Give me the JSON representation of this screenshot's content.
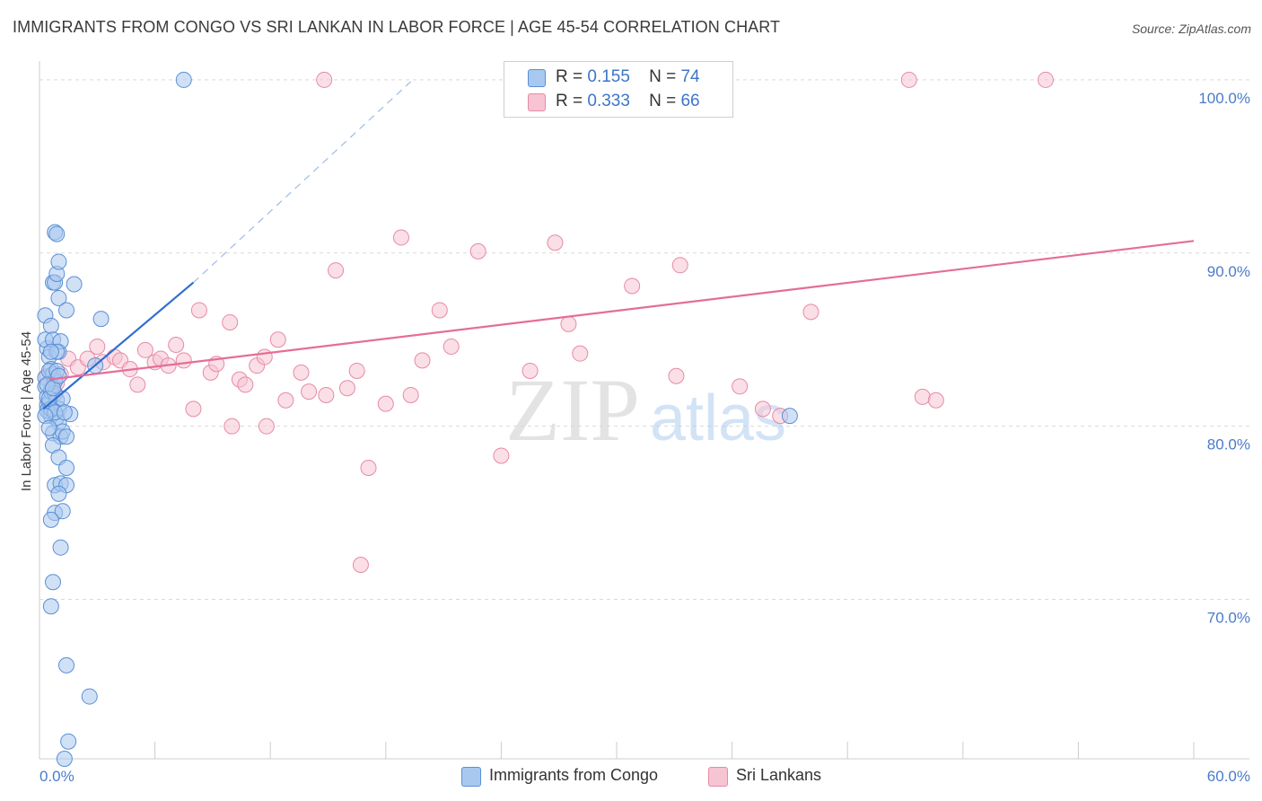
{
  "title": "IMMIGRANTS FROM CONGO VS SRI LANKAN IN LABOR FORCE | AGE 45-54 CORRELATION CHART",
  "source": "Source: ZipAtlas.com",
  "watermark": {
    "zip": "ZIP",
    "atlas": "atlas"
  },
  "colors": {
    "blue_fill": "#a9c8ef",
    "blue_stroke": "#5b8fd6",
    "blue_line": "#2f6fd0",
    "pink_fill": "#f6c4d3",
    "pink_stroke": "#e78aa7",
    "pink_line": "#e56d97",
    "grid": "#d9d9d9",
    "tick_text": "#4a7cc9"
  },
  "legend": {
    "rows": [
      {
        "r_label": "R =",
        "r_value": "0.155",
        "n_label": "N =",
        "n_value": "74"
      },
      {
        "r_label": "R =",
        "r_value": "0.333",
        "n_label": "N =",
        "n_value": "66"
      }
    ]
  },
  "bottom_legend": [
    "Immigrants from Congo",
    "Sri Lankans"
  ],
  "chart_data": {
    "type": "scatter",
    "title": "IMMIGRANTS FROM CONGO VS SRI LANKAN IN LABOR FORCE | AGE 45-54 CORRELATION CHART",
    "xlabel": "",
    "ylabel": "In Labor Force | Age 45-54",
    "xlim": [
      0,
      60
    ],
    "ylim": [
      60.8,
      101.5
    ],
    "x_tick_labels": [
      "0.0%",
      "60.0%"
    ],
    "y_ticks": [
      70,
      80,
      90,
      100
    ],
    "y_tick_labels": [
      "70.0%",
      "80.0%",
      "90.0%",
      "100.0%"
    ],
    "grid": true,
    "series": [
      {
        "name": "Immigrants from Congo",
        "r": 0.155,
        "n": 74,
        "trend": {
          "x": [
            0.2,
            8.0
          ],
          "y": [
            81.0,
            88.3
          ],
          "dashed_to": [
            19.3,
            99.9
          ]
        },
        "points": [
          [
            0.3,
            82.8
          ],
          [
            0.3,
            82.3
          ],
          [
            0.4,
            81.7
          ],
          [
            0.4,
            81.2
          ],
          [
            0.5,
            80.9
          ],
          [
            0.5,
            81.4
          ],
          [
            0.6,
            82.0
          ],
          [
            0.6,
            80.6
          ],
          [
            0.4,
            84.5
          ],
          [
            0.5,
            84.0
          ],
          [
            0.6,
            83.3
          ],
          [
            0.7,
            83.0
          ],
          [
            0.8,
            82.6
          ],
          [
            0.8,
            81.9
          ],
          [
            0.9,
            81.5
          ],
          [
            1.0,
            81.0
          ],
          [
            0.9,
            80.5
          ],
          [
            1.0,
            80.2
          ],
          [
            0.7,
            79.6
          ],
          [
            0.3,
            85.0
          ],
          [
            0.3,
            86.4
          ],
          [
            0.6,
            85.8
          ],
          [
            0.7,
            85.0
          ],
          [
            1.0,
            84.3
          ],
          [
            1.1,
            84.9
          ],
          [
            0.7,
            88.3
          ],
          [
            0.8,
            88.3
          ],
          [
            0.9,
            88.8
          ],
          [
            1.0,
            87.4
          ],
          [
            1.4,
            86.7
          ],
          [
            1.8,
            88.2
          ],
          [
            0.8,
            91.2
          ],
          [
            0.9,
            91.1
          ],
          [
            1.0,
            89.5
          ],
          [
            1.1,
            79.4
          ],
          [
            1.2,
            79.7
          ],
          [
            1.4,
            79.4
          ],
          [
            0.7,
            78.9
          ],
          [
            1.0,
            78.2
          ],
          [
            1.4,
            77.6
          ],
          [
            0.8,
            76.6
          ],
          [
            1.1,
            76.7
          ],
          [
            1.4,
            76.6
          ],
          [
            1.0,
            76.1
          ],
          [
            0.8,
            75.0
          ],
          [
            1.2,
            75.1
          ],
          [
            0.6,
            74.6
          ],
          [
            1.1,
            73.0
          ],
          [
            0.7,
            71.0
          ],
          [
            0.6,
            69.6
          ],
          [
            1.4,
            66.2
          ],
          [
            2.6,
            64.4
          ],
          [
            1.5,
            61.8
          ],
          [
            1.3,
            60.8
          ],
          [
            3.2,
            86.2
          ],
          [
            2.9,
            83.5
          ],
          [
            1.6,
            80.7
          ],
          [
            7.5,
            100.0
          ],
          [
            39.0,
            80.6
          ],
          [
            0.5,
            83.2
          ],
          [
            0.4,
            80.9
          ],
          [
            0.6,
            81.0
          ],
          [
            0.9,
            84.3
          ],
          [
            1.2,
            81.6
          ],
          [
            0.4,
            82.4
          ],
          [
            0.8,
            80.8
          ],
          [
            1.3,
            80.8
          ],
          [
            0.5,
            81.6
          ],
          [
            0.7,
            82.2
          ],
          [
            0.9,
            83.2
          ],
          [
            0.6,
            84.3
          ],
          [
            1.0,
            82.9
          ],
          [
            0.3,
            80.6
          ],
          [
            0.5,
            79.9
          ]
        ]
      },
      {
        "name": "Sri Lankans",
        "r": 0.333,
        "n": 66,
        "trend": {
          "x": [
            0.5,
            60.0
          ],
          "y": [
            82.7,
            90.7
          ]
        },
        "points": [
          [
            0.4,
            82.9
          ],
          [
            0.6,
            82.3
          ],
          [
            0.8,
            81.9
          ],
          [
            0.9,
            82.5
          ],
          [
            1.1,
            83.0
          ],
          [
            1.5,
            83.9
          ],
          [
            2.0,
            83.4
          ],
          [
            2.5,
            83.9
          ],
          [
            3.0,
            84.6
          ],
          [
            3.3,
            83.7
          ],
          [
            3.9,
            84.0
          ],
          [
            4.2,
            83.8
          ],
          [
            4.7,
            83.3
          ],
          [
            5.1,
            82.4
          ],
          [
            5.5,
            84.4
          ],
          [
            6.0,
            83.7
          ],
          [
            6.3,
            83.9
          ],
          [
            6.7,
            83.5
          ],
          [
            7.1,
            84.7
          ],
          [
            7.5,
            83.8
          ],
          [
            8.0,
            81.0
          ],
          [
            8.3,
            86.7
          ],
          [
            8.9,
            83.1
          ],
          [
            9.2,
            83.6
          ],
          [
            9.9,
            86.0
          ],
          [
            10.0,
            80.0
          ],
          [
            10.4,
            82.7
          ],
          [
            10.7,
            82.4
          ],
          [
            11.3,
            83.5
          ],
          [
            11.7,
            84.0
          ],
          [
            11.8,
            80.0
          ],
          [
            12.4,
            85.0
          ],
          [
            12.8,
            81.5
          ],
          [
            13.6,
            83.1
          ],
          [
            14.0,
            82.0
          ],
          [
            14.9,
            81.8
          ],
          [
            15.4,
            89.0
          ],
          [
            16.0,
            82.2
          ],
          [
            16.5,
            83.2
          ],
          [
            17.1,
            77.6
          ],
          [
            16.7,
            72.0
          ],
          [
            18.0,
            81.3
          ],
          [
            18.8,
            90.9
          ],
          [
            19.3,
            81.8
          ],
          [
            19.9,
            83.8
          ],
          [
            20.8,
            86.7
          ],
          [
            21.4,
            84.6
          ],
          [
            22.8,
            90.1
          ],
          [
            24.0,
            78.3
          ],
          [
            24.6,
            100.0
          ],
          [
            25.5,
            83.2
          ],
          [
            26.8,
            90.6
          ],
          [
            27.5,
            85.9
          ],
          [
            28.1,
            84.2
          ],
          [
            30.8,
            88.1
          ],
          [
            33.1,
            82.9
          ],
          [
            33.3,
            89.3
          ],
          [
            36.4,
            82.3
          ],
          [
            37.6,
            81.0
          ],
          [
            38.5,
            80.6
          ],
          [
            40.1,
            86.6
          ],
          [
            45.2,
            100.0
          ],
          [
            45.9,
            81.7
          ],
          [
            46.6,
            81.5
          ],
          [
            52.3,
            100.0
          ],
          [
            14.8,
            100.0
          ]
        ]
      }
    ]
  }
}
